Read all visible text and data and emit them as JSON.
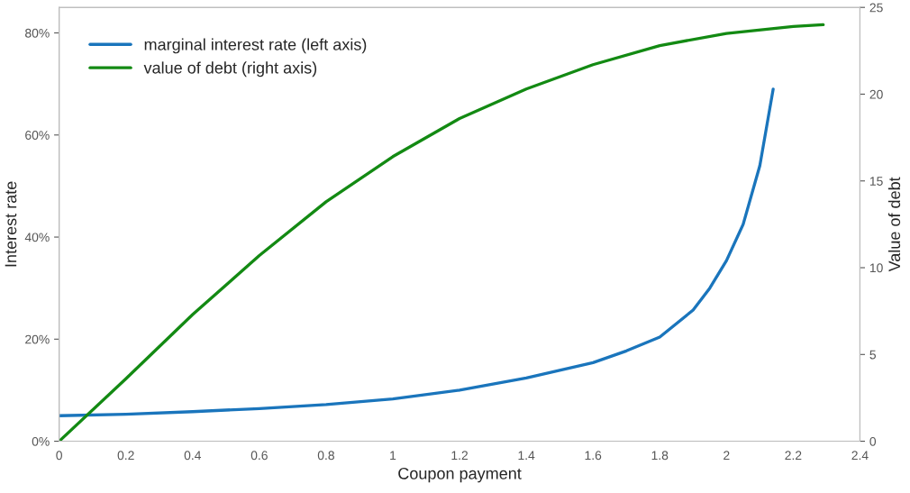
{
  "chart_data": {
    "type": "line",
    "xlabel": "Coupon payment",
    "ylabel": "Interest rate",
    "y2label": "Value of debt",
    "xlim": [
      0,
      2.4
    ],
    "xticks": [
      0,
      0.2,
      0.4,
      0.6,
      0.8,
      1,
      1.2,
      1.4,
      1.6,
      1.8,
      2,
      2.2,
      2.4
    ],
    "ylim": [
      0,
      85
    ],
    "yticks": [
      {
        "value": 0,
        "label": "0%"
      },
      {
        "value": 20,
        "label": "20%"
      },
      {
        "value": 40,
        "label": "40%"
      },
      {
        "value": 60,
        "label": "60%"
      },
      {
        "value": 80,
        "label": "80%"
      }
    ],
    "y2lim": [
      0,
      25
    ],
    "y2ticks": [
      0,
      5,
      10,
      15,
      20,
      25
    ],
    "grid": false,
    "legend": "top left",
    "marker": "none",
    "line_style": "solid",
    "series": [
      {
        "name": "marginal interest rate (left axis)",
        "color": "#1a75bc",
        "x": [
          0,
          0.2,
          0.4,
          0.6,
          0.8,
          1.0,
          1.2,
          1.4,
          1.6,
          1.7,
          1.8,
          1.9,
          1.95,
          2.0,
          2.05,
          2.1,
          2.14
        ],
        "values": [
          5.0,
          5.3,
          5.8,
          6.4,
          7.2,
          8.3,
          10,
          12.4,
          15.4,
          17.7,
          20.4,
          25.7,
          30,
          35.4,
          42.5,
          54,
          69
        ]
      },
      {
        "name": "value of debt (right axis)",
        "color": "#138a13",
        "axis": "y2",
        "x": [
          0,
          0.2,
          0.4,
          0.6,
          0.8,
          1.0,
          1.2,
          1.4,
          1.6,
          1.8,
          2.0,
          2.2,
          2.29
        ],
        "values": [
          0,
          3.6,
          7.3,
          10.7,
          13.8,
          16.4,
          18.6,
          20.3,
          21.7,
          22.8,
          23.5,
          23.9,
          24.0
        ]
      }
    ]
  }
}
